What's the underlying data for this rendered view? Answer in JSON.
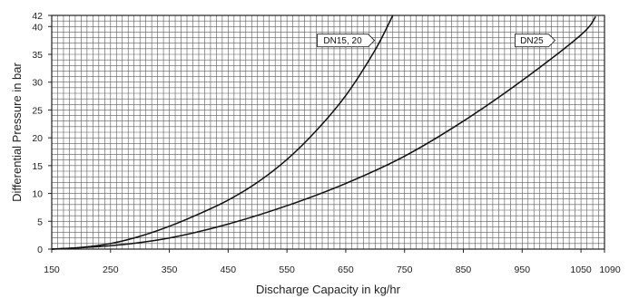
{
  "chart_data": {
    "type": "line",
    "title": "",
    "xlabel": "Discharge Capacity in kg/hr",
    "ylabel": "Differential Pressure in bar",
    "xlim": [
      150,
      1090
    ],
    "ylim": [
      0,
      42
    ],
    "x_ticks": [
      150,
      250,
      350,
      450,
      550,
      650,
      750,
      850,
      950,
      1050,
      1090
    ],
    "y_ticks": [
      0,
      5,
      10,
      15,
      20,
      25,
      30,
      35,
      40,
      42
    ],
    "grid": true,
    "series": [
      {
        "name": "DN15, 20",
        "x": [
          150,
          200,
          250,
          300,
          350,
          400,
          450,
          500,
          550,
          600,
          650,
          700,
          730
        ],
        "y": [
          0,
          0.3,
          1.0,
          2.3,
          4.1,
          6.3,
          8.8,
          12.0,
          16.1,
          21.3,
          27.6,
          35.8,
          42.0
        ]
      },
      {
        "name": "DN25",
        "x": [
          150,
          250,
          350,
          450,
          550,
          650,
          750,
          850,
          950,
          1050,
          1075
        ],
        "y": [
          0,
          0.6,
          2.0,
          4.5,
          7.8,
          11.8,
          16.7,
          23.0,
          30.3,
          38.5,
          41.8
        ]
      }
    ]
  }
}
